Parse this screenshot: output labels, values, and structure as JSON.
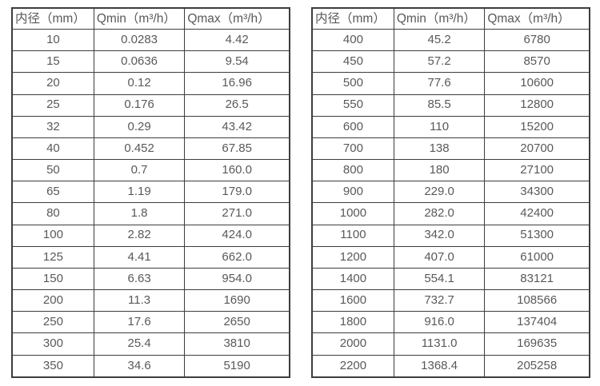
{
  "page": {
    "background_color": "#ffffff",
    "text_color": "#595959",
    "border_color": "#3d3d3d"
  },
  "tables": [
    {
      "name": "flow-table-small-diameters",
      "headers": [
        "内径（mm）",
        "Qmin（m³/h）",
        "Qmax（m³/h）"
      ],
      "rows": [
        [
          "10",
          "0.0283",
          "4.42"
        ],
        [
          "15",
          "0.0636",
          "9.54"
        ],
        [
          "20",
          "0.12",
          "16.96"
        ],
        [
          "25",
          "0.176",
          "26.5"
        ],
        [
          "32",
          "0.29",
          "43.42"
        ],
        [
          "40",
          "0.452",
          "67.85"
        ],
        [
          "50",
          "0.7",
          "160.0"
        ],
        [
          "65",
          "1.19",
          "179.0"
        ],
        [
          "80",
          "1.8",
          "271.0"
        ],
        [
          "100",
          "2.82",
          "424.0"
        ],
        [
          "125",
          "4.41",
          "662.0"
        ],
        [
          "150",
          "6.63",
          "954.0"
        ],
        [
          "200",
          "11.3",
          "1690"
        ],
        [
          "250",
          "17.6",
          "2650"
        ],
        [
          "300",
          "25.4",
          "3810"
        ],
        [
          "350",
          "34.6",
          "5190"
        ]
      ]
    },
    {
      "name": "flow-table-large-diameters",
      "headers": [
        "内径（mm）",
        "Qmin（m³/h）",
        "Qmax（m³/h）"
      ],
      "rows": [
        [
          "400",
          "45.2",
          "6780"
        ],
        [
          "450",
          "57.2",
          "8570"
        ],
        [
          "500",
          "77.6",
          "10600"
        ],
        [
          "550",
          "85.5",
          "12800"
        ],
        [
          "600",
          "110",
          "15200"
        ],
        [
          "700",
          "138",
          "20700"
        ],
        [
          "800",
          "180",
          "27100"
        ],
        [
          "900",
          "229.0",
          "34300"
        ],
        [
          "1000",
          "282.0",
          "42400"
        ],
        [
          "1100",
          "342.0",
          "51300"
        ],
        [
          "1200",
          "407.0",
          "61000"
        ],
        [
          "1400",
          "554.1",
          "83121"
        ],
        [
          "1600",
          "732.7",
          "108566"
        ],
        [
          "1800",
          "916.0",
          "137404"
        ],
        [
          "2000",
          "1131.0",
          "169635"
        ],
        [
          "2200",
          "1368.4",
          "205258"
        ]
      ]
    }
  ]
}
